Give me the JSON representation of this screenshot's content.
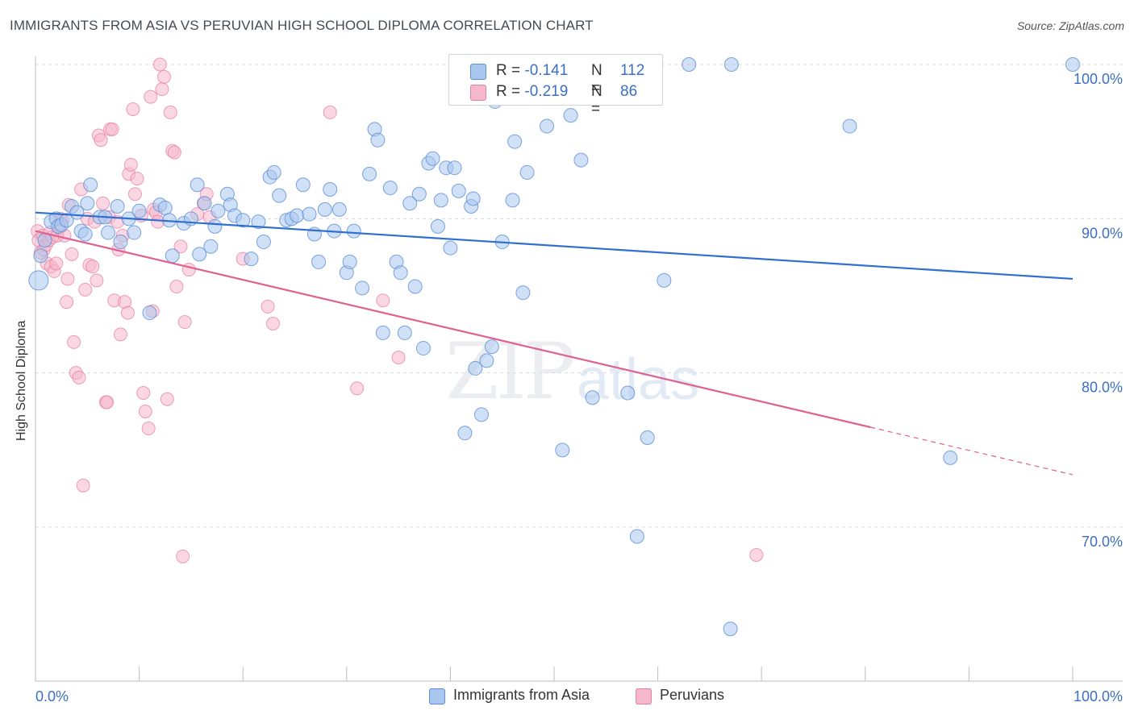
{
  "title": "IMMIGRANTS FROM ASIA VS PERUVIAN HIGH SCHOOL DIPLOMA CORRELATION CHART",
  "source": "Source: ZipAtlas.com",
  "watermark": {
    "zip": "ZIP",
    "atlas": "atlas"
  },
  "legend": {
    "r_label": "R =",
    "n_label": "N =",
    "rows": [
      {
        "r": "-0.141",
        "n": "112"
      },
      {
        "r": "-0.219",
        "n": "86"
      }
    ]
  },
  "colors": {
    "blue": "#5b8fd6",
    "blue_fill": "#a9c6ee",
    "blue_line": "#2e6fcf",
    "pink": "#e77fa3",
    "pink_fill": "#f5b7cb",
    "pink_line": "#e06090",
    "axis_text": "#3b6fc4",
    "grid": "#d8dce2"
  },
  "chart_data": {
    "type": "scatter",
    "title": "IMMIGRANTS FROM ASIA VS PERUVIAN HIGH SCHOOL DIPLOMA CORRELATION CHART",
    "xlabel": "",
    "ylabel": "High School Diploma",
    "xlim": [
      0,
      100
    ],
    "ylim": [
      61.5,
      101.5
    ],
    "x_tick_labels": [
      "0.0%",
      "100.0%"
    ],
    "y_ticks": [
      70,
      80,
      90,
      100
    ],
    "y_tick_labels": [
      "70.0%",
      "80.0%",
      "90.0%",
      "100.0%"
    ],
    "grid": true,
    "legend_position": "top-center",
    "series": [
      {
        "name": "Immigrants from Asia",
        "r": -0.141,
        "n": 112,
        "trend": {
          "x0": 0,
          "y0": 90.4,
          "x1": 100,
          "y1": 86.1
        },
        "points": [
          [
            0.3,
            86.0
          ],
          [
            0.5,
            87.6
          ],
          [
            0.9,
            88.6
          ],
          [
            1.5,
            89.8
          ],
          [
            2.0,
            90.0
          ],
          [
            2.2,
            89.5
          ],
          [
            2.5,
            89.6
          ],
          [
            3.0,
            89.9
          ],
          [
            3.5,
            90.8
          ],
          [
            4.0,
            90.4
          ],
          [
            4.4,
            89.2
          ],
          [
            4.8,
            89.0
          ],
          [
            5.0,
            91.0
          ],
          [
            5.3,
            92.2
          ],
          [
            6.2,
            90.1
          ],
          [
            6.7,
            90.1
          ],
          [
            7.0,
            89.1
          ],
          [
            7.9,
            90.8
          ],
          [
            8.2,
            88.5
          ],
          [
            9.0,
            90.0
          ],
          [
            9.5,
            89.1
          ],
          [
            10.0,
            90.5
          ],
          [
            11.0,
            83.9
          ],
          [
            12.0,
            90.9
          ],
          [
            12.5,
            90.7
          ],
          [
            12.9,
            89.9
          ],
          [
            13.2,
            87.6
          ],
          [
            14.3,
            89.7
          ],
          [
            15.0,
            90.0
          ],
          [
            15.6,
            92.2
          ],
          [
            15.8,
            87.7
          ],
          [
            16.3,
            91.0
          ],
          [
            16.9,
            88.2
          ],
          [
            17.3,
            89.5
          ],
          [
            17.6,
            90.5
          ],
          [
            18.5,
            91.6
          ],
          [
            18.8,
            90.9
          ],
          [
            19.2,
            90.2
          ],
          [
            20.0,
            89.9
          ],
          [
            20.8,
            87.4
          ],
          [
            21.5,
            89.8
          ],
          [
            22.0,
            88.5
          ],
          [
            22.6,
            92.7
          ],
          [
            23.0,
            93.0
          ],
          [
            23.5,
            91.5
          ],
          [
            24.2,
            89.9
          ],
          [
            24.7,
            90.0
          ],
          [
            25.2,
            90.2
          ],
          [
            25.8,
            92.2
          ],
          [
            26.4,
            90.3
          ],
          [
            26.9,
            89.0
          ],
          [
            27.3,
            87.2
          ],
          [
            27.9,
            90.6
          ],
          [
            28.4,
            91.9
          ],
          [
            28.8,
            89.2
          ],
          [
            29.3,
            90.6
          ],
          [
            30.0,
            86.5
          ],
          [
            30.3,
            87.2
          ],
          [
            30.7,
            89.2
          ],
          [
            31.5,
            85.5
          ],
          [
            32.2,
            92.9
          ],
          [
            32.7,
            95.8
          ],
          [
            33.0,
            95.1
          ],
          [
            33.5,
            82.6
          ],
          [
            34.2,
            92.0
          ],
          [
            34.8,
            87.2
          ],
          [
            35.2,
            86.5
          ],
          [
            35.6,
            82.6
          ],
          [
            36.1,
            91.0
          ],
          [
            36.6,
            85.6
          ],
          [
            37.0,
            91.6
          ],
          [
            37.4,
            81.6
          ],
          [
            37.9,
            93.6
          ],
          [
            38.3,
            93.9
          ],
          [
            38.8,
            89.5
          ],
          [
            39.1,
            91.2
          ],
          [
            39.6,
            93.3
          ],
          [
            40.0,
            88.1
          ],
          [
            40.4,
            93.3
          ],
          [
            40.8,
            91.8
          ],
          [
            41.4,
            76.1
          ],
          [
            42.0,
            90.8
          ],
          [
            42.2,
            91.3
          ],
          [
            42.4,
            80.3
          ],
          [
            43.0,
            77.3
          ],
          [
            43.5,
            80.8
          ],
          [
            44.0,
            81.7
          ],
          [
            44.3,
            97.6
          ],
          [
            45.0,
            88.5
          ],
          [
            46.0,
            91.2
          ],
          [
            46.2,
            95.0
          ],
          [
            47.0,
            85.2
          ],
          [
            47.4,
            93.0
          ],
          [
            49.3,
            96.0
          ],
          [
            50.8,
            75.0
          ],
          [
            51.6,
            96.7
          ],
          [
            52.6,
            93.8
          ],
          [
            53.7,
            78.4
          ],
          [
            54.0,
            98.9
          ],
          [
            57.1,
            78.7
          ],
          [
            58.0,
            69.4
          ],
          [
            59.0,
            75.8
          ],
          [
            60.6,
            86.0
          ],
          [
            63.0,
            100.0
          ],
          [
            67.1,
            100.0
          ],
          [
            67.0,
            63.4
          ],
          [
            78.5,
            96.0
          ],
          [
            88.2,
            74.5
          ],
          [
            100.0,
            100.0
          ]
        ]
      },
      {
        "name": "Peruvians",
        "r": -0.219,
        "n": 86,
        "trend": {
          "x0": 0,
          "y0": 89.2,
          "x1": 100,
          "y1": 73.4
        },
        "trend_solid_until_x": 80.5,
        "points": [
          [
            0.2,
            89.2
          ],
          [
            0.3,
            88.6
          ],
          [
            0.5,
            87.8
          ],
          [
            0.7,
            88.9
          ],
          [
            0.8,
            88.0
          ],
          [
            1.0,
            88.3
          ],
          [
            1.1,
            87.1
          ],
          [
            1.3,
            88.6
          ],
          [
            1.4,
            89.1
          ],
          [
            1.5,
            86.9
          ],
          [
            1.6,
            88.8
          ],
          [
            1.8,
            86.6
          ],
          [
            2.0,
            87.1
          ],
          [
            2.1,
            88.9
          ],
          [
            2.3,
            89.4
          ],
          [
            2.4,
            90.0
          ],
          [
            2.6,
            89.9
          ],
          [
            2.8,
            88.9
          ],
          [
            3.0,
            84.6
          ],
          [
            3.1,
            86.1
          ],
          [
            3.2,
            90.9
          ],
          [
            3.5,
            87.7
          ],
          [
            3.7,
            82.0
          ],
          [
            3.9,
            80.0
          ],
          [
            4.2,
            79.7
          ],
          [
            4.4,
            91.9
          ],
          [
            4.6,
            72.7
          ],
          [
            4.8,
            85.4
          ],
          [
            5.0,
            90.0
          ],
          [
            5.2,
            87.0
          ],
          [
            5.5,
            86.9
          ],
          [
            5.7,
            89.8
          ],
          [
            5.9,
            86.0
          ],
          [
            6.1,
            95.4
          ],
          [
            6.3,
            95.1
          ],
          [
            6.5,
            91.0
          ],
          [
            6.8,
            78.1
          ],
          [
            6.9,
            78.1
          ],
          [
            7.1,
            90.1
          ],
          [
            7.2,
            95.8
          ],
          [
            7.4,
            95.8
          ],
          [
            7.6,
            84.7
          ],
          [
            7.9,
            89.8
          ],
          [
            8.0,
            88.0
          ],
          [
            8.2,
            82.5
          ],
          [
            8.4,
            88.9
          ],
          [
            8.6,
            84.6
          ],
          [
            8.9,
            83.9
          ],
          [
            9.0,
            92.9
          ],
          [
            9.2,
            93.5
          ],
          [
            9.4,
            97.1
          ],
          [
            9.6,
            91.6
          ],
          [
            9.8,
            92.6
          ],
          [
            10.2,
            90.2
          ],
          [
            10.4,
            78.7
          ],
          [
            10.6,
            77.5
          ],
          [
            10.9,
            76.4
          ],
          [
            11.1,
            97.9
          ],
          [
            11.3,
            84.0
          ],
          [
            11.4,
            90.6
          ],
          [
            11.6,
            90.4
          ],
          [
            11.8,
            89.8
          ],
          [
            12.0,
            100.0
          ],
          [
            12.2,
            98.4
          ],
          [
            12.4,
            99.2
          ],
          [
            12.7,
            78.3
          ],
          [
            13.0,
            96.9
          ],
          [
            13.2,
            94.4
          ],
          [
            13.4,
            94.3
          ],
          [
            13.6,
            85.6
          ],
          [
            14.0,
            88.2
          ],
          [
            14.2,
            68.1
          ],
          [
            14.4,
            83.3
          ],
          [
            14.8,
            86.7
          ],
          [
            15.6,
            90.3
          ],
          [
            16.2,
            91.0
          ],
          [
            16.5,
            91.6
          ],
          [
            16.8,
            90.1
          ],
          [
            20.0,
            87.4
          ],
          [
            22.4,
            84.3
          ],
          [
            22.9,
            83.2
          ],
          [
            28.4,
            96.9
          ],
          [
            31.0,
            79.0
          ],
          [
            33.5,
            84.7
          ],
          [
            35.0,
            81.0
          ],
          [
            69.5,
            68.2
          ]
        ]
      }
    ]
  },
  "bottom_legend": [
    "Immigrants from Asia",
    "Peruvians"
  ]
}
